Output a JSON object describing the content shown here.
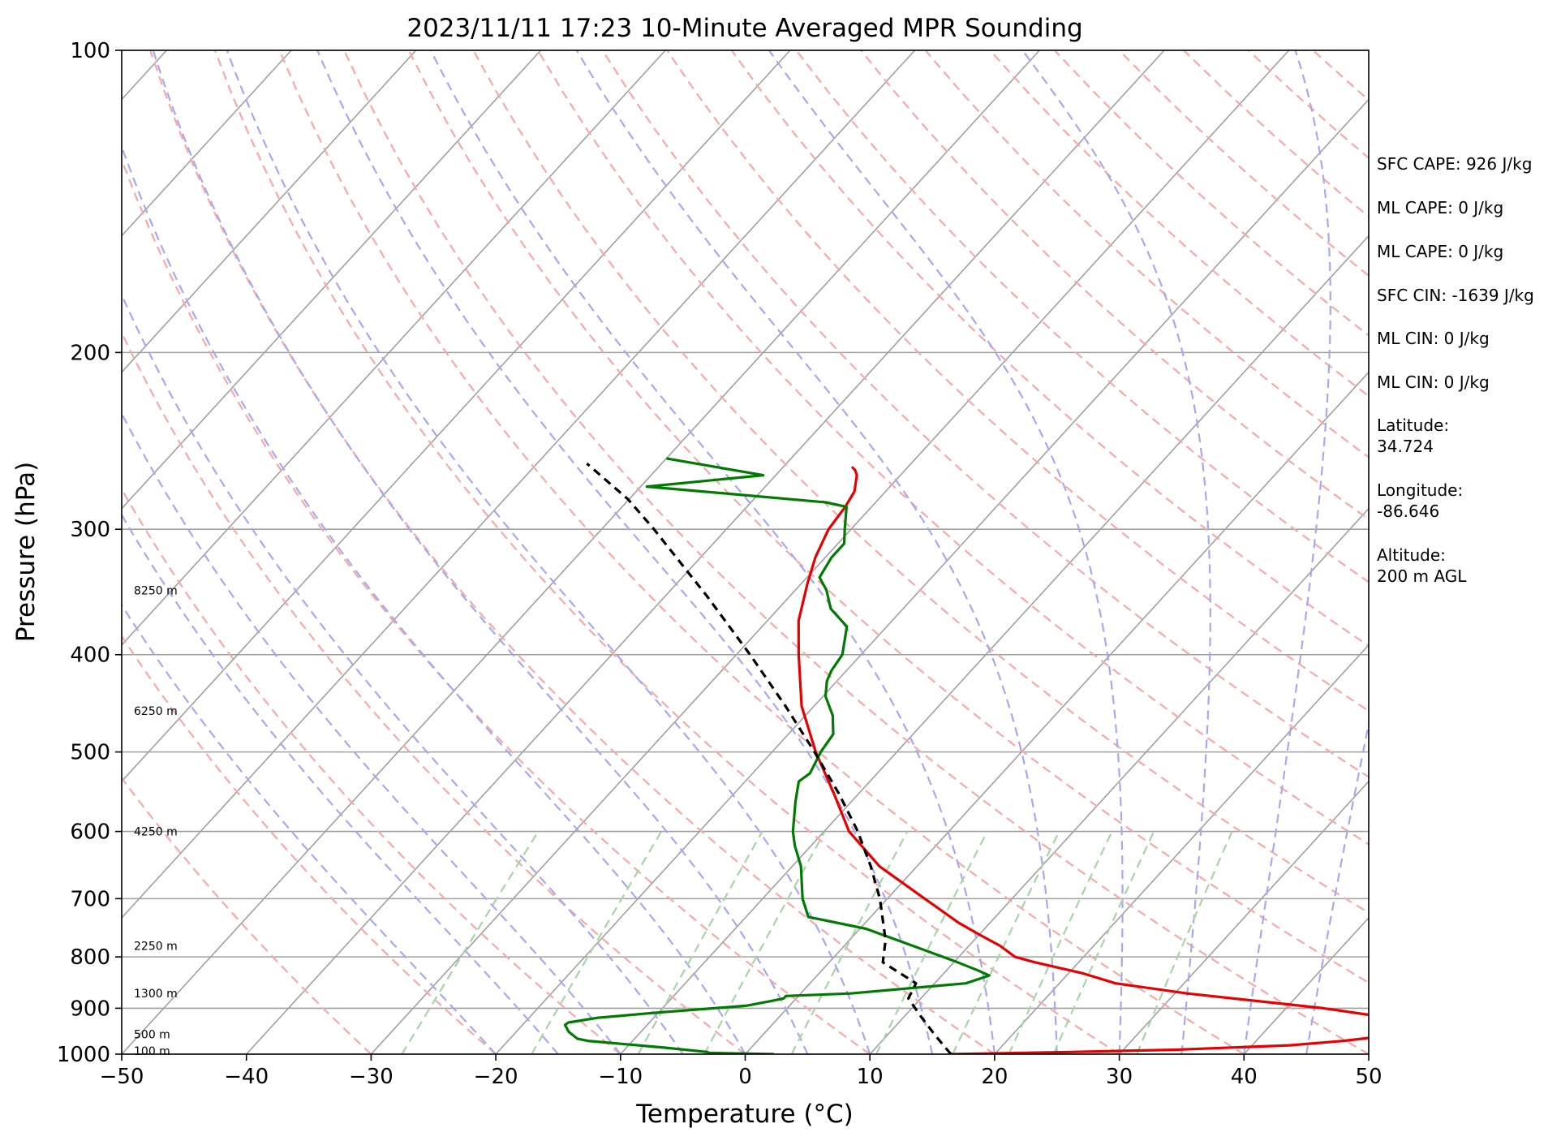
{
  "chart_data": {
    "type": "line",
    "title": "2023/11/11 17:23 10-Minute Averaged MPR Sounding",
    "xlabel": "Temperature (°C)",
    "ylabel": "Pressure (hPa)",
    "xlim": [
      -50,
      50
    ],
    "ylim": [
      1000,
      100
    ],
    "y_scale": "log",
    "x_ticks": [
      "−50",
      "−40",
      "−30",
      "−20",
      "−10",
      "0",
      "10",
      "20",
      "30",
      "40",
      "50"
    ],
    "x_tick_values": [
      -50,
      -40,
      -30,
      -20,
      -10,
      0,
      10,
      20,
      30,
      40,
      50
    ],
    "y_ticks": [
      "100",
      "200",
      "300",
      "400",
      "500",
      "600",
      "700",
      "800",
      "900",
      "1000"
    ],
    "y_tick_values": [
      100,
      200,
      300,
      400,
      500,
      600,
      700,
      800,
      900,
      1000
    ],
    "grid": true,
    "background_lines": [
      "skewed isotherms",
      "dry adiabats",
      "moist adiabats",
      "mixing ratio lines"
    ],
    "height_labels": [
      {
        "text": "8250 m",
        "p": 345
      },
      {
        "text": "6250 m",
        "p": 455
      },
      {
        "text": "4250 m",
        "p": 600
      },
      {
        "text": "2250 m",
        "p": 780
      },
      {
        "text": "1300 m",
        "p": 870
      },
      {
        "text": "500 m",
        "p": 955
      },
      {
        "text": "100 m",
        "p": 993
      }
    ],
    "series": [
      {
        "color": "#e60000",
        "points": [
          [
            1000,
            16.5
          ],
          [
            995,
            26
          ],
          [
            990,
            34
          ],
          [
            980,
            43
          ],
          [
            970,
            47
          ],
          [
            960,
            49.8
          ],
          [
            950,
            50
          ],
          [
            930,
            50
          ],
          [
            920,
            49
          ],
          [
            900,
            43
          ],
          [
            870,
            31
          ],
          [
            850,
            24.5
          ],
          [
            830,
            21
          ],
          [
            810,
            16.5
          ],
          [
            800,
            14.5
          ],
          [
            780,
            12.5
          ],
          [
            760,
            10
          ],
          [
            740,
            7.5
          ],
          [
            700,
            3
          ],
          [
            650,
            -3
          ],
          [
            600,
            -8
          ],
          [
            550,
            -12
          ],
          [
            500,
            -16.5
          ],
          [
            450,
            -21
          ],
          [
            400,
            -25
          ],
          [
            370,
            -27.5
          ],
          [
            340,
            -29.5
          ],
          [
            320,
            -30.8
          ],
          [
            300,
            -31.8
          ],
          [
            285,
            -32.1
          ],
          [
            275,
            -32.5
          ],
          [
            270,
            -33
          ],
          [
            265,
            -33.5
          ],
          [
            262,
            -34
          ],
          [
            260,
            -34.5
          ]
        ]
      },
      {
        "color": "#007a00",
        "points": [
          [
            1000,
            2.3
          ],
          [
            997,
            -3
          ],
          [
            995,
            -3.2
          ],
          [
            985,
            -7
          ],
          [
            970,
            -13.6
          ],
          [
            965,
            -14.6
          ],
          [
            950,
            -15.8
          ],
          [
            935,
            -16.6
          ],
          [
            930,
            -16.5
          ],
          [
            920,
            -14.5
          ],
          [
            910,
            -10.5
          ],
          [
            895,
            -3.5
          ],
          [
            885,
            -1.8
          ],
          [
            880,
            -1
          ],
          [
            875,
            -1
          ],
          [
            870,
            4
          ],
          [
            850,
            12.5
          ],
          [
            835,
            13.8
          ],
          [
            825,
            12.5
          ],
          [
            810,
            10.3
          ],
          [
            780,
            5.5
          ],
          [
            750,
            0.5
          ],
          [
            730,
            -5
          ],
          [
            700,
            -6.8
          ],
          [
            650,
            -9.3
          ],
          [
            620,
            -11.3
          ],
          [
            600,
            -12.5
          ],
          [
            560,
            -14.5
          ],
          [
            535,
            -15.7
          ],
          [
            525,
            -15.4
          ],
          [
            500,
            -16.1
          ],
          [
            480,
            -16.4
          ],
          [
            460,
            -17.8
          ],
          [
            440,
            -19.8
          ],
          [
            425,
            -20.8
          ],
          [
            415,
            -21.2
          ],
          [
            400,
            -21.5
          ],
          [
            375,
            -23.2
          ],
          [
            360,
            -25.8
          ],
          [
            345,
            -27.5
          ],
          [
            335,
            -29
          ],
          [
            320,
            -29.5
          ],
          [
            310,
            -29.5
          ],
          [
            300,
            -30.5
          ],
          [
            285,
            -32
          ],
          [
            282,
            -34
          ],
          [
            272,
            -49.5
          ],
          [
            265,
            -41
          ],
          [
            255,
            -50
          ]
        ]
      },
      {
        "color": "#000000",
        "dashed": true,
        "points": [
          [
            1000,
            16.5
          ],
          [
            960,
            14
          ],
          [
            920,
            11.5
          ],
          [
            880,
            9
          ],
          [
            850,
            8.5
          ],
          [
            810,
            4.3
          ],
          [
            770,
            2.9
          ],
          [
            700,
            -0.6
          ],
          [
            650,
            -3.7
          ],
          [
            600,
            -7.3
          ],
          [
            550,
            -11.6
          ],
          [
            500,
            -16.6
          ],
          [
            450,
            -22.3
          ],
          [
            400,
            -28.9
          ],
          [
            350,
            -36.6
          ],
          [
            300,
            -45.8
          ],
          [
            280,
            -50.1
          ],
          [
            258,
            -56
          ]
        ]
      }
    ]
  },
  "info_panel": {
    "lines": [
      [
        "SFC CAPE: 926 J/kg"
      ],
      [
        "ML CAPE: 0 J/kg"
      ],
      [
        "ML CAPE: 0 J/kg"
      ],
      [
        "SFC CIN: -1639 J/kg"
      ],
      [
        "ML CIN: 0 J/kg"
      ],
      [
        "ML CIN: 0 J/kg"
      ],
      [
        "Latitude:",
        "34.724"
      ],
      [
        "Longitude:",
        "-86.646"
      ],
      [
        "Altitude:",
        "200 m AGL"
      ]
    ]
  },
  "colors": {
    "temperature": "#e60000",
    "dewpoint": "#007a00",
    "parcel": "#000000",
    "dry_adiabat": "#f8a8a8",
    "moist_adiabat": "#a8a8f0",
    "mixing_ratio": "#a8d4a8",
    "isotherm": "#a0a0a0",
    "isobar": "#a0a0a0"
  }
}
